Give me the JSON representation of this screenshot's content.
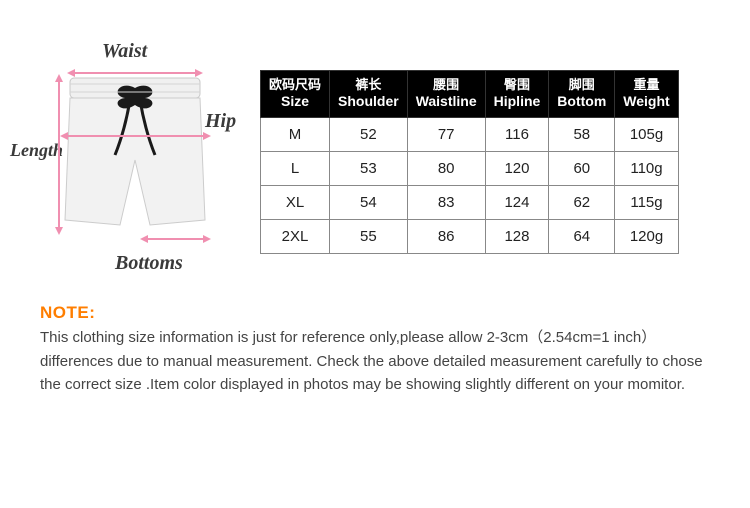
{
  "diagram": {
    "labels": {
      "waist": "Waist",
      "hip": "Hip",
      "length": "Length",
      "bottoms": "Bottoms"
    },
    "arrow_color": "#f08fb0",
    "label_color": "#3a3a3a",
    "shorts_fill": "#f2f2f2",
    "shorts_stroke": "#cccccc"
  },
  "table": {
    "header_bg": "#000000",
    "header_fg": "#ffffff",
    "border_color": "#888888",
    "columns": [
      {
        "cn": "欧码尺码",
        "en": "Size"
      },
      {
        "cn": "裤长",
        "en": "Shoulder"
      },
      {
        "cn": "腰围",
        "en": "Waistline"
      },
      {
        "cn": "臀围",
        "en": "Hipline"
      },
      {
        "cn": "脚围",
        "en": "Bottom"
      },
      {
        "cn": "重量",
        "en": "Weight"
      }
    ],
    "rows": [
      [
        "M",
        "52",
        "77",
        "116",
        "58",
        "105g"
      ],
      [
        "L",
        "53",
        "80",
        "120",
        "60",
        "110g"
      ],
      [
        "XL",
        "54",
        "83",
        "124",
        "62",
        "115g"
      ],
      [
        "2XL",
        "55",
        "86",
        "128",
        "64",
        "120g"
      ]
    ]
  },
  "note": {
    "label": "NOTE:",
    "label_color": "#ff7e00",
    "text": "This clothing size information is just for reference only,please allow 2-3cm（2.54cm=1 inch）differences due to manual measurement. Check the above detailed measurement carefully to chose the correct size .Item color displayed in photos may be showing slightly different on your momitor."
  }
}
